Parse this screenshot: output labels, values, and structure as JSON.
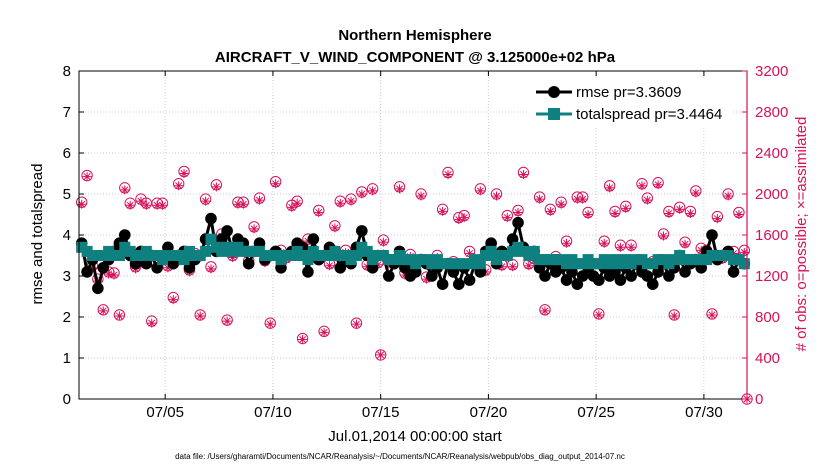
{
  "chart_data": {
    "type": "line",
    "title": "Northern Hemisphere",
    "subtitle": "AIRCRAFT_V_WIND_COMPONENT @ 3.125000e+02 hPa",
    "xlabel": "Jul.01,2014 00:00:00 start",
    "ylabel_left": "rmse and totalspread",
    "ylabel_right": "# of obs: o=possible; ×=assimilated",
    "footnote": "data file: /Users/gharamti/Documents/NCAR/Reanalysis/~/Documents/NCAR/Reanalysis/webpub/obs_diag_output_2014-07.nc",
    "xlim": [
      1,
      32
    ],
    "ylim_left": [
      0,
      8
    ],
    "ylim_right": [
      0,
      3200
    ],
    "x_ticks": [
      {
        "value": 5,
        "label": "07/05"
      },
      {
        "value": 10,
        "label": "07/10"
      },
      {
        "value": 15,
        "label": "07/15"
      },
      {
        "value": 20,
        "label": "07/20"
      },
      {
        "value": 25,
        "label": "07/25"
      },
      {
        "value": 30,
        "label": "07/30"
      }
    ],
    "y_ticks_left": [
      "0",
      "1",
      "2",
      "3",
      "4",
      "5",
      "6",
      "7",
      "8"
    ],
    "y_ticks_right": [
      "0",
      "400",
      "800",
      "1200",
      "1600",
      "2000",
      "2400",
      "2800",
      "3200"
    ],
    "x": [
      1.125,
      1.375,
      1.625,
      1.875,
      2.125,
      2.375,
      2.625,
      2.875,
      3.125,
      3.375,
      3.625,
      3.875,
      4.125,
      4.375,
      4.625,
      4.875,
      5.125,
      5.375,
      5.625,
      5.875,
      6.125,
      6.375,
      6.625,
      6.875,
      7.125,
      7.375,
      7.625,
      7.875,
      8.125,
      8.375,
      8.625,
      8.875,
      9.125,
      9.375,
      9.625,
      9.875,
      10.125,
      10.375,
      10.625,
      10.875,
      11.125,
      11.375,
      11.625,
      11.875,
      12.125,
      12.375,
      12.625,
      12.875,
      13.125,
      13.375,
      13.625,
      13.875,
      14.125,
      14.375,
      14.625,
      14.875,
      15.125,
      15.375,
      15.625,
      15.875,
      16.125,
      16.375,
      16.625,
      16.875,
      17.125,
      17.375,
      17.625,
      17.875,
      18.125,
      18.375,
      18.625,
      18.875,
      19.125,
      19.375,
      19.625,
      19.875,
      20.125,
      20.375,
      20.625,
      20.875,
      21.125,
      21.375,
      21.625,
      21.875,
      22.125,
      22.375,
      22.625,
      22.875,
      23.125,
      23.375,
      23.625,
      23.875,
      24.125,
      24.375,
      24.625,
      24.875,
      25.125,
      25.375,
      25.625,
      25.875,
      26.125,
      26.375,
      26.625,
      26.875,
      27.125,
      27.375,
      27.625,
      27.875,
      28.125,
      28.375,
      28.625,
      28.875,
      29.125,
      29.375,
      29.625,
      29.875,
      30.125,
      30.375,
      30.625,
      30.875,
      31.125,
      31.375,
      31.625,
      31.875
    ],
    "series": [
      {
        "name": "rmse",
        "legend_label": "rmse pr=3.3609",
        "color": "#000000",
        "values": [
          3.8,
          3.1,
          3.4,
          2.7,
          3.2,
          3.4,
          3.6,
          3.8,
          4.0,
          3.5,
          3.3,
          3.6,
          3.3,
          3.5,
          3.2,
          3.4,
          3.7,
          3.3,
          3.5,
          3.6,
          3.2,
          3.4,
          3.5,
          3.9,
          4.4,
          3.6,
          3.9,
          4.1,
          3.6,
          3.9,
          3.8,
          3.3,
          3.6,
          3.8,
          3.4,
          3.5,
          3.6,
          3.2,
          3.5,
          3.6,
          3.8,
          3.7,
          3.1,
          3.9,
          3.4,
          3.5,
          3.7,
          3.6,
          3.2,
          3.4,
          3.3,
          3.7,
          4.1,
          3.5,
          3.2,
          3.5,
          3.5,
          3.0,
          3.3,
          3.6,
          3.2,
          3.0,
          3.1,
          3.4,
          3.3,
          3.0,
          3.2,
          2.8,
          3.3,
          3.1,
          2.8,
          3.2,
          2.9,
          3.3,
          3.1,
          3.6,
          3.8,
          3.3,
          3.6,
          3.5,
          3.9,
          4.3,
          3.7,
          3.5,
          3.6,
          3.2,
          3.0,
          3.3,
          3.1,
          3.2,
          2.9,
          3.1,
          2.8,
          3.0,
          3.2,
          3.0,
          2.9,
          3.2,
          3.0,
          3.1,
          2.9,
          3.2,
          3.0,
          3.3,
          3.1,
          3.0,
          2.8,
          3.1,
          3.3,
          3.0,
          3.2,
          3.5,
          3.1,
          3.3,
          3.4,
          3.2,
          3.6,
          4.0,
          3.4,
          3.5,
          3.6,
          3.1,
          3.4,
          3.3
        ],
        "marker": "circle"
      },
      {
        "name": "totalspread",
        "legend_label": "totalspread pr=3.4464",
        "color": "#0e8080",
        "values": [
          3.7,
          3.6,
          3.5,
          3.5,
          3.5,
          3.6,
          3.5,
          3.5,
          3.7,
          3.6,
          3.5,
          3.5,
          3.6,
          3.5,
          3.5,
          3.4,
          3.5,
          3.5,
          3.5,
          3.4,
          3.6,
          3.5,
          3.5,
          3.6,
          3.9,
          3.7,
          3.6,
          3.7,
          3.6,
          3.7,
          3.6,
          3.6,
          3.6,
          3.6,
          3.5,
          3.5,
          3.5,
          3.4,
          3.5,
          3.5,
          3.6,
          3.5,
          3.4,
          3.6,
          3.5,
          3.5,
          3.5,
          3.6,
          3.5,
          3.5,
          3.4,
          3.5,
          3.7,
          3.6,
          3.4,
          3.5,
          3.5,
          3.4,
          3.4,
          3.5,
          3.4,
          3.4,
          3.3,
          3.4,
          3.4,
          3.3,
          3.4,
          3.3,
          3.3,
          3.3,
          3.3,
          3.3,
          3.3,
          3.4,
          3.3,
          3.5,
          3.6,
          3.4,
          3.5,
          3.5,
          3.6,
          3.7,
          3.6,
          3.5,
          3.6,
          3.4,
          3.4,
          3.4,
          3.4,
          3.4,
          3.3,
          3.4,
          3.3,
          3.3,
          3.4,
          3.3,
          3.3,
          3.4,
          3.3,
          3.4,
          3.3,
          3.4,
          3.3,
          3.4,
          3.4,
          3.3,
          3.3,
          3.4,
          3.4,
          3.3,
          3.4,
          3.5,
          3.4,
          3.4,
          3.4,
          3.4,
          3.4,
          3.5,
          3.5,
          3.5,
          3.5,
          3.4,
          3.4,
          3.3
        ],
        "marker": "square"
      }
    ],
    "obs_series": {
      "name": "# of obs",
      "color": "#d6125a",
      "possible_marker": "circle",
      "assimilated_marker": "asterisk",
      "possible": [
        1920,
        2180,
        1300,
        1170,
        870,
        1240,
        1230,
        820,
        2060,
        1910,
        1290,
        1950,
        1910,
        760,
        1910,
        1910,
        1300,
        990,
        2100,
        2220,
        1260,
        1420,
        820,
        1950,
        1290,
        2090,
        1610,
        770,
        1400,
        1920,
        1920,
        1350,
        1680,
        1960,
        1350,
        740,
        2120,
        1450,
        1380,
        1890,
        1930,
        590,
        1560,
        1420,
        1840,
        660,
        1320,
        1690,
        1930,
        1450,
        1950,
        740,
        2020,
        1310,
        2050,
        1330,
        1550,
        1340,
        1350,
        2070,
        1230,
        1410,
        1340,
        2000,
        1190,
        1290,
        1400,
        1850,
        2210,
        1340,
        1770,
        1790,
        1440,
        1330,
        2050,
        1260,
        1520,
        2000,
        1310,
        1790,
        1310,
        1840,
        2210,
        1320,
        1370,
        1970,
        870,
        1850,
        1390,
        1920,
        1540,
        1310,
        1970,
        1970,
        1820,
        1320,
        830,
        1540,
        2080,
        1830,
        1500,
        1880,
        1500,
        1320,
        2100,
        1960,
        1340,
        2110,
        1610,
        1830,
        820,
        1870,
        1530,
        1830,
        2030,
        1470,
        1450,
        830,
        1780,
        1380,
        2000,
        1440,
        1820,
        1450,
        1890,
        1510
      ],
      "assimilated": [
        1900,
        2170,
        1280,
        1150,
        860,
        1220,
        1210,
        810,
        2040,
        1890,
        1270,
        1930,
        1890,
        740,
        1890,
        1890,
        1280,
        970,
        2080,
        2200,
        1240,
        1400,
        810,
        1930,
        1270,
        2070,
        1590,
        760,
        1380,
        1900,
        1900,
        1330,
        1660,
        1940,
        1330,
        730,
        2100,
        1430,
        1360,
        1870,
        1910,
        580,
        1540,
        1400,
        1820,
        650,
        1300,
        1670,
        1910,
        1430,
        1930,
        730,
        2000,
        1290,
        2030,
        1310,
        1530,
        1320,
        1330,
        2050,
        1210,
        1390,
        1320,
        1980,
        1170,
        1270,
        1380,
        1830,
        2190,
        1320,
        1750,
        1770,
        1420,
        1310,
        2030,
        1240,
        1500,
        1980,
        1290,
        1770,
        1290,
        1820,
        2190,
        1300,
        1350,
        1950,
        860,
        1830,
        1370,
        1900,
        1520,
        1290,
        1950,
        1950,
        1800,
        1300,
        820,
        1520,
        2060,
        1810,
        1480,
        1860,
        1480,
        1300,
        2080,
        1940,
        1320,
        2090,
        1590,
        1810,
        810,
        1850,
        1510,
        1810,
        2010,
        1450,
        1430,
        820,
        1760,
        1360,
        1980,
        1420,
        1800,
        1430,
        1870,
        1490
      ]
    },
    "extra_obs_points": [
      {
        "x": 15.0,
        "value": 430
      },
      {
        "x": 32.0,
        "value": 0
      }
    ],
    "legend_position": "top-right",
    "grid": true
  }
}
